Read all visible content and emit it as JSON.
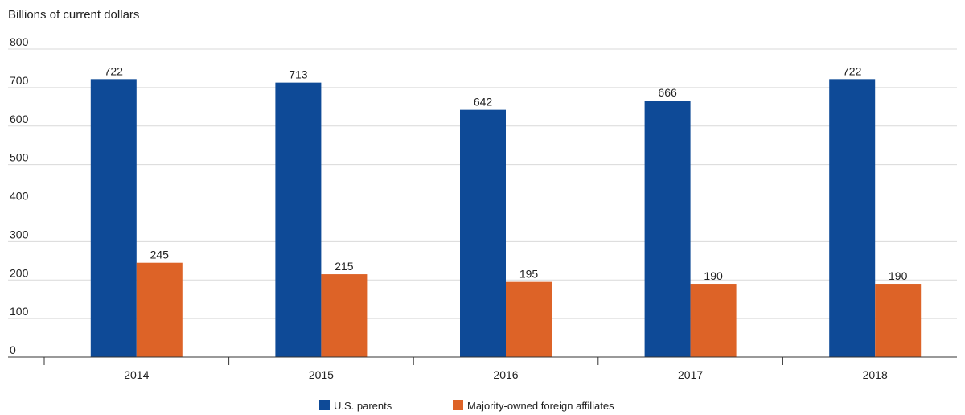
{
  "chart_data": {
    "type": "bar",
    "title": "",
    "ylabel": "Billions of current dollars",
    "xlabel": "",
    "categories": [
      "2014",
      "2015",
      "2016",
      "2017",
      "2018"
    ],
    "ylim": [
      0,
      800
    ],
    "yticks": [
      0,
      100,
      200,
      300,
      400,
      500,
      600,
      700,
      800
    ],
    "grid": true,
    "legend_position": "bottom",
    "series": [
      {
        "name": "U.S. parents",
        "color": "#0e4a97",
        "values": [
          722,
          713,
          642,
          666,
          722
        ]
      },
      {
        "name": "Majority-owned foreign affiliates",
        "color": "#dd6327",
        "values": [
          245,
          215,
          195,
          190,
          190
        ]
      }
    ]
  }
}
